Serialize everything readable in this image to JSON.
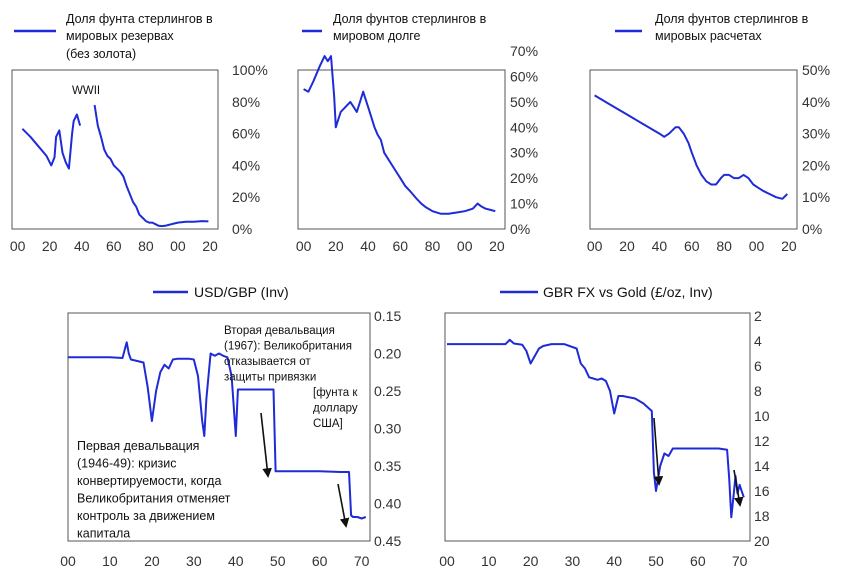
{
  "chart_data": [
    {
      "type": "line",
      "legend_lines": [
        "Доля фунта стерлингов в",
        "мировых резервах",
        "(без золота)"
      ],
      "x_ticks": [
        "00",
        "20",
        "40",
        "60",
        "80",
        "00",
        "20"
      ],
      "y_ticks": [
        "0%",
        "20%",
        "40%",
        "60%",
        "80%",
        "100%"
      ],
      "xlim": [
        1899,
        2025
      ],
      "ylim": [
        0,
        100
      ],
      "y_axis_side": "right",
      "annotation": "WWII",
      "series": [
        {
          "x": [
            1903,
            1908,
            1913,
            1918,
            1921,
            1923,
            1924,
            1926,
            1928,
            1930,
            1932,
            1934,
            1935,
            1937,
            1939
          ],
          "y": [
            63,
            58,
            52,
            46,
            40,
            45,
            58,
            62,
            48,
            42,
            38,
            60,
            68,
            72,
            65
          ]
        },
        {
          "x": [
            1948,
            1950,
            1952,
            1954,
            1956,
            1958,
            1960,
            1962,
            1964,
            1966,
            1968,
            1970,
            1972,
            1974,
            1976,
            1978,
            1980,
            1982,
            1984,
            1986,
            1988,
            1990,
            1992,
            1994,
            1996,
            1998,
            2000,
            2005,
            2010,
            2015,
            2019
          ],
          "y": [
            78,
            65,
            58,
            50,
            46,
            44,
            40,
            38,
            36,
            33,
            27,
            22,
            17,
            14,
            9,
            7,
            5,
            4,
            4,
            3,
            2,
            1.8,
            2,
            2.5,
            3,
            3.5,
            4,
            4.5,
            4.5,
            5,
            4.8
          ]
        }
      ]
    },
    {
      "type": "line",
      "legend_lines": [
        "Доля фунтов стерлингов в",
        "мировом долге"
      ],
      "x_ticks": [
        "00",
        "20",
        "40",
        "60",
        "80",
        "00",
        "20"
      ],
      "y_ticks": [
        "0%",
        "10%",
        "20%",
        "30%",
        "40%",
        "50%",
        "60%",
        "70%"
      ],
      "xlim": [
        1899,
        2025
      ],
      "ylim": [
        0,
        70
      ],
      "y_axis_side": "right",
      "series": [
        {
          "x": [
            1900,
            1903,
            1906,
            1910,
            1913,
            1915,
            1917,
            1918,
            1919,
            1920,
            1921,
            1923,
            1926,
            1929,
            1931,
            1933,
            1935,
            1937,
            1938,
            1940,
            1942,
            1944,
            1946,
            1948,
            1950,
            1952,
            1955,
            1958,
            1960,
            1963,
            1966,
            1970,
            1973,
            1976,
            1980,
            1985,
            1990,
            1995,
            2000,
            2005,
            2008,
            2010,
            2013,
            2016,
            2019
          ],
          "y": [
            55,
            54,
            58,
            64,
            68,
            66,
            68,
            60,
            52,
            40,
            42,
            46,
            48,
            50,
            48,
            46,
            50,
            54,
            52,
            48,
            44,
            40,
            37,
            35,
            30,
            28,
            25,
            22,
            20,
            17,
            15,
            12,
            10,
            8.5,
            7,
            6,
            6,
            6.5,
            7,
            8,
            10,
            9,
            8,
            7.5,
            7
          ]
        }
      ]
    },
    {
      "type": "line",
      "legend_lines": [
        "Доля фунтов стерлингов в",
        "мировых расчетах"
      ],
      "x_ticks": [
        "00",
        "20",
        "40",
        "60",
        "80",
        "00",
        "20"
      ],
      "y_ticks": [
        "0%",
        "10%",
        "20%",
        "30%",
        "40%",
        "50%"
      ],
      "xlim": [
        1899,
        2025
      ],
      "ylim": [
        0,
        50
      ],
      "y_axis_side": "right",
      "series": [
        {
          "x": [
            1900,
            1910,
            1920,
            1930,
            1940,
            1943,
            1946,
            1948,
            1950,
            1952,
            1955,
            1958,
            1960,
            1963,
            1966,
            1969,
            1972,
            1975,
            1978,
            1980,
            1983,
            1986,
            1989,
            1992,
            1995,
            1998,
            2001,
            2004,
            2008,
            2012,
            2016,
            2019
          ],
          "y": [
            42,
            39,
            36,
            33,
            30,
            29,
            30,
            31,
            32,
            32,
            30,
            27,
            24,
            20,
            17,
            15,
            14,
            14,
            16,
            17,
            17,
            16,
            16,
            17,
            16,
            14,
            13,
            12,
            11,
            10,
            9.5,
            11
          ]
        }
      ]
    },
    {
      "type": "line",
      "legend": "USD/GBP (Inv)",
      "x_ticks": [
        "00",
        "10",
        "20",
        "30",
        "40",
        "50",
        "60",
        "70"
      ],
      "y_ticks": [
        "0.15",
        "0.20",
        "0.25",
        "0.30",
        "0.35",
        "0.40",
        "0.45"
      ],
      "xlim": [
        1900,
        1972
      ],
      "ylim": [
        0.15,
        0.45
      ],
      "y_inverted": true,
      "y_axis_side": "right",
      "annotations": [
        [
          "Вторая девальвация",
          "(1967): Великобритания",
          "отказывается от",
          "защиты  привязки",
          "[фунта к",
          "доллару",
          "США]"
        ],
        [
          "Первая девальвация",
          "(1946-49): кризис",
          "конвертируемости, когда",
          "Великобритания отменяет",
          "контроль за движением",
          "капитала"
        ]
      ],
      "series": [
        {
          "x": [
            1900,
            1905,
            1910,
            1913,
            1914,
            1914.5,
            1915,
            1918,
            1919,
            1920,
            1921,
            1922,
            1923,
            1924,
            1925,
            1926,
            1927,
            1928,
            1929,
            1930,
            1931,
            1932,
            1932.5,
            1933,
            1934,
            1935,
            1936,
            1937,
            1938,
            1939,
            1940,
            1940.5,
            1941,
            1945,
            1949,
            1949.5,
            1950,
            1955,
            1960,
            1965,
            1967,
            1967.5,
            1968,
            1969,
            1970,
            1971
          ],
          "y": [
            0.205,
            0.205,
            0.205,
            0.206,
            0.185,
            0.2,
            0.208,
            0.212,
            0.245,
            0.29,
            0.25,
            0.225,
            0.215,
            0.22,
            0.208,
            0.207,
            0.207,
            0.207,
            0.207,
            0.208,
            0.23,
            0.29,
            0.31,
            0.26,
            0.2,
            0.203,
            0.2,
            0.203,
            0.205,
            0.23,
            0.31,
            0.248,
            0.248,
            0.248,
            0.248,
            0.357,
            0.357,
            0.357,
            0.357,
            0.358,
            0.358,
            0.416,
            0.418,
            0.418,
            0.42,
            0.418
          ]
        }
      ]
    },
    {
      "type": "line",
      "legend": "GBR FX vs Gold (£/oz, Inv)",
      "x_ticks": [
        "00",
        "10",
        "20",
        "30",
        "40",
        "50",
        "60",
        "70"
      ],
      "y_ticks": [
        "2",
        "4",
        "6",
        "8",
        "10",
        "12",
        "14",
        "16",
        "18",
        "20"
      ],
      "xlim": [
        1900,
        1972
      ],
      "ylim": [
        2,
        20
      ],
      "y_inverted": true,
      "y_axis_side": "right",
      "series": [
        {
          "x": [
            1900,
            1905,
            1910,
            1914,
            1915,
            1916,
            1918,
            1919,
            1920,
            1921,
            1922,
            1923,
            1925,
            1928,
            1931,
            1932,
            1933,
            1934,
            1935,
            1936,
            1937,
            1938,
            1939,
            1940,
            1941,
            1942,
            1945,
            1947,
            1949,
            1949.5,
            1950,
            1951,
            1952,
            1953,
            1954,
            1956,
            1958,
            1960,
            1962,
            1965,
            1967,
            1967.5,
            1968,
            1968.5,
            1969,
            1969.5,
            1970,
            1971
          ],
          "y": [
            4.25,
            4.25,
            4.25,
            4.25,
            3.9,
            4.2,
            4.3,
            4.8,
            5.8,
            5.2,
            4.6,
            4.4,
            4.25,
            4.25,
            4.6,
            5.8,
            6.2,
            6.9,
            7.0,
            7.1,
            7.0,
            7.2,
            8.0,
            9.8,
            8.4,
            8.4,
            8.6,
            9.0,
            9.6,
            14.5,
            16.0,
            14.0,
            13.0,
            13.2,
            12.6,
            12.6,
            12.6,
            12.6,
            12.6,
            12.6,
            12.7,
            15.0,
            18.1,
            16.5,
            14.8,
            16.2,
            15.5,
            16.5
          ]
        }
      ]
    }
  ]
}
